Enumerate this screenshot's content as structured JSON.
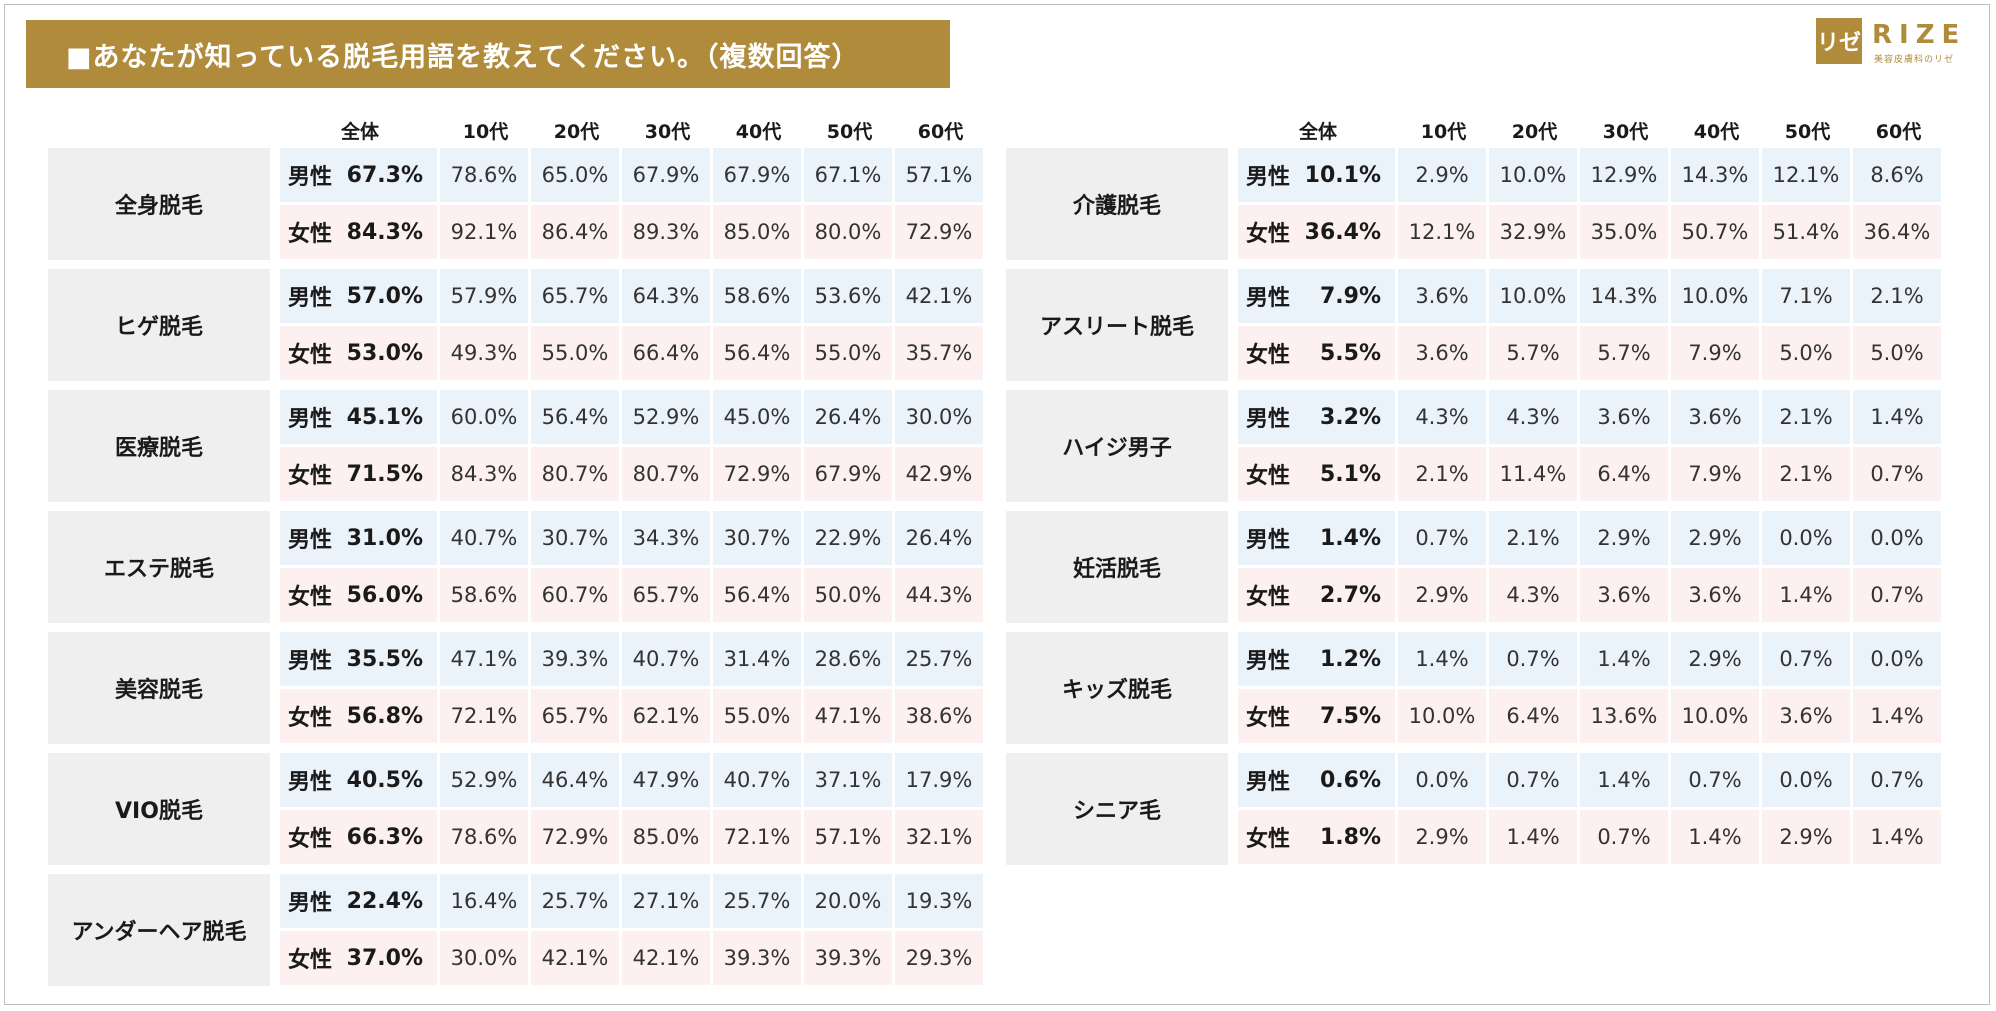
{
  "title": "■あなたが知っている脱毛用語を教えてください。（複数回答）",
  "logo": {
    "mark": "リゼ",
    "word": "RIZE",
    "sub": "美容皮膚科のリゼ"
  },
  "headers": {
    "total": "全体",
    "ages": [
      "10代",
      "20代",
      "30代",
      "40代",
      "50代",
      "60代"
    ]
  },
  "gender_labels": {
    "male": "男性",
    "female": "女性"
  },
  "left_terms": [
    {
      "name": "全身脱毛",
      "male": {
        "total": "67.3%",
        "ages": [
          "78.6%",
          "65.0%",
          "67.9%",
          "67.9%",
          "67.1%",
          "57.1%"
        ]
      },
      "female": {
        "total": "84.3%",
        "ages": [
          "92.1%",
          "86.4%",
          "89.3%",
          "85.0%",
          "80.0%",
          "72.9%"
        ]
      }
    },
    {
      "name": "ヒゲ脱毛",
      "male": {
        "total": "57.0%",
        "ages": [
          "57.9%",
          "65.7%",
          "64.3%",
          "58.6%",
          "53.6%",
          "42.1%"
        ]
      },
      "female": {
        "total": "53.0%",
        "ages": [
          "49.3%",
          "55.0%",
          "66.4%",
          "56.4%",
          "55.0%",
          "35.7%"
        ]
      }
    },
    {
      "name": "医療脱毛",
      "male": {
        "total": "45.1%",
        "ages": [
          "60.0%",
          "56.4%",
          "52.9%",
          "45.0%",
          "26.4%",
          "30.0%"
        ]
      },
      "female": {
        "total": "71.5%",
        "ages": [
          "84.3%",
          "80.7%",
          "80.7%",
          "72.9%",
          "67.9%",
          "42.9%"
        ]
      }
    },
    {
      "name": "エステ脱毛",
      "male": {
        "total": "31.0%",
        "ages": [
          "40.7%",
          "30.7%",
          "34.3%",
          "30.7%",
          "22.9%",
          "26.4%"
        ]
      },
      "female": {
        "total": "56.0%",
        "ages": [
          "58.6%",
          "60.7%",
          "65.7%",
          "56.4%",
          "50.0%",
          "44.3%"
        ]
      }
    },
    {
      "name": "美容脱毛",
      "male": {
        "total": "35.5%",
        "ages": [
          "47.1%",
          "39.3%",
          "40.7%",
          "31.4%",
          "28.6%",
          "25.7%"
        ]
      },
      "female": {
        "total": "56.8%",
        "ages": [
          "72.1%",
          "65.7%",
          "62.1%",
          "55.0%",
          "47.1%",
          "38.6%"
        ]
      }
    },
    {
      "name": "VIO脱毛",
      "male": {
        "total": "40.5%",
        "ages": [
          "52.9%",
          "46.4%",
          "47.9%",
          "40.7%",
          "37.1%",
          "17.9%"
        ]
      },
      "female": {
        "total": "66.3%",
        "ages": [
          "78.6%",
          "72.9%",
          "85.0%",
          "72.1%",
          "57.1%",
          "32.1%"
        ]
      }
    },
    {
      "name": "アンダーヘア脱毛",
      "male": {
        "total": "22.4%",
        "ages": [
          "16.4%",
          "25.7%",
          "27.1%",
          "25.7%",
          "20.0%",
          "19.3%"
        ]
      },
      "female": {
        "total": "37.0%",
        "ages": [
          "30.0%",
          "42.1%",
          "42.1%",
          "39.3%",
          "39.3%",
          "29.3%"
        ]
      }
    }
  ],
  "right_terms": [
    {
      "name": "介護脱毛",
      "male": {
        "total": "10.1%",
        "ages": [
          "2.9%",
          "10.0%",
          "12.9%",
          "14.3%",
          "12.1%",
          "8.6%"
        ]
      },
      "female": {
        "total": "36.4%",
        "ages": [
          "12.1%",
          "32.9%",
          "35.0%",
          "50.7%",
          "51.4%",
          "36.4%"
        ]
      }
    },
    {
      "name": "アスリート脱毛",
      "male": {
        "total": "7.9%",
        "ages": [
          "3.6%",
          "10.0%",
          "14.3%",
          "10.0%",
          "7.1%",
          "2.1%"
        ]
      },
      "female": {
        "total": "5.5%",
        "ages": [
          "3.6%",
          "5.7%",
          "5.7%",
          "7.9%",
          "5.0%",
          "5.0%"
        ]
      }
    },
    {
      "name": "ハイジ男子",
      "male": {
        "total": "3.2%",
        "ages": [
          "4.3%",
          "4.3%",
          "3.6%",
          "3.6%",
          "2.1%",
          "1.4%"
        ]
      },
      "female": {
        "total": "5.1%",
        "ages": [
          "2.1%",
          "11.4%",
          "6.4%",
          "7.9%",
          "2.1%",
          "0.7%"
        ]
      }
    },
    {
      "name": "妊活脱毛",
      "male": {
        "total": "1.4%",
        "ages": [
          "0.7%",
          "2.1%",
          "2.9%",
          "2.9%",
          "0.0%",
          "0.0%"
        ]
      },
      "female": {
        "total": "2.7%",
        "ages": [
          "2.9%",
          "4.3%",
          "3.6%",
          "3.6%",
          "1.4%",
          "0.7%"
        ]
      }
    },
    {
      "name": "キッズ脱毛",
      "male": {
        "total": "1.2%",
        "ages": [
          "1.4%",
          "0.7%",
          "1.4%",
          "2.9%",
          "0.7%",
          "0.0%"
        ]
      },
      "female": {
        "total": "7.5%",
        "ages": [
          "10.0%",
          "6.4%",
          "13.6%",
          "10.0%",
          "3.6%",
          "1.4%"
        ]
      }
    },
    {
      "name": "シニア毛",
      "male": {
        "total": "0.6%",
        "ages": [
          "0.0%",
          "0.7%",
          "1.4%",
          "0.7%",
          "0.0%",
          "0.7%"
        ]
      },
      "female": {
        "total": "1.8%",
        "ages": [
          "2.9%",
          "1.4%",
          "0.7%",
          "1.4%",
          "2.9%",
          "1.4%"
        ]
      }
    }
  ],
  "colors": {
    "title_band": "#b08b3c",
    "male_row": "#eaf2fa",
    "female_row": "#fdf0f0",
    "label_bg": "#efefef"
  }
}
